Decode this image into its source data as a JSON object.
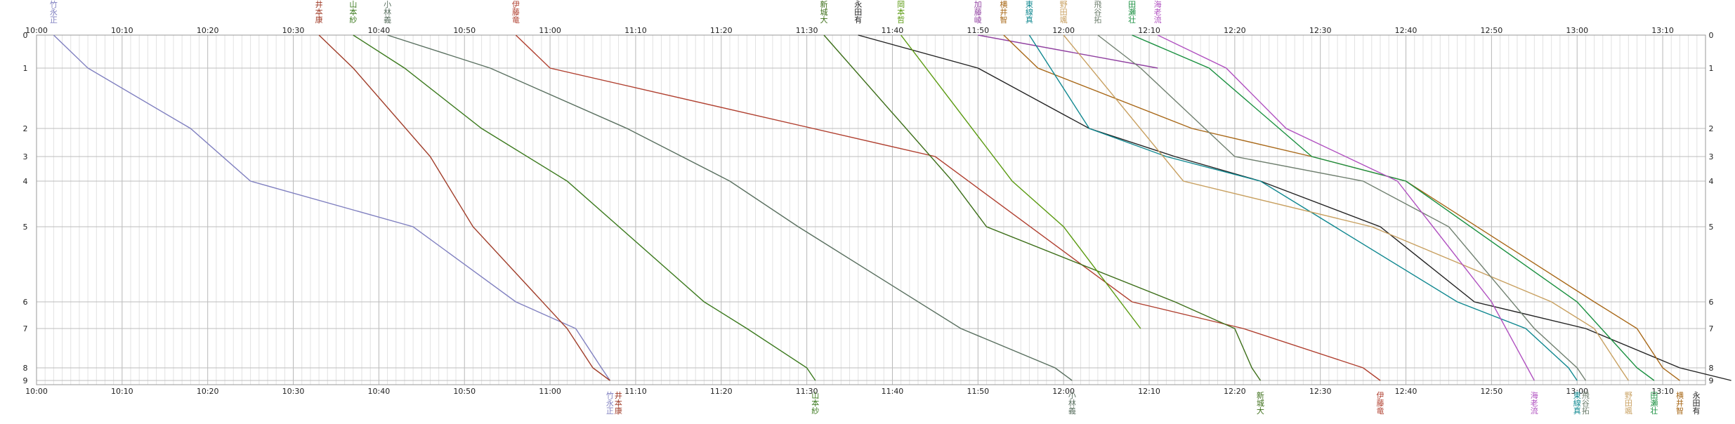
{
  "chart_data": {
    "type": "line",
    "x_axis": {
      "min": "10:00",
      "max": "13:15",
      "tick_labels": [
        "10:00",
        "10:10",
        "10:20",
        "10:30",
        "10:40",
        "10:50",
        "11:00",
        "11:10",
        "11:20",
        "11:30",
        "11:40",
        "11:50",
        "12:00",
        "12:10",
        "12:20",
        "12:30",
        "12:40",
        "12:50",
        "13:00",
        "13:10"
      ],
      "minor_grid_minutes": 1
    },
    "y_axis": {
      "tick_labels": [
        "0",
        "1",
        "2",
        "3",
        "4",
        "5",
        "6",
        "7",
        "8",
        "9"
      ],
      "inverted": true
    },
    "grid": true,
    "series": [
      {
        "name": "竹永正",
        "color": "#8080c0",
        "points": [
          [
            "10:02",
            "0"
          ],
          [
            "10:06",
            "1"
          ],
          [
            "10:18",
            "2"
          ],
          [
            "10:25",
            "4"
          ],
          [
            "10:44",
            "5"
          ],
          [
            "10:56",
            "6"
          ],
          [
            "11:03",
            "7"
          ],
          [
            "11:06",
            "8"
          ],
          [
            "11:07",
            "9"
          ]
        ]
      },
      {
        "name": "井本康",
        "color": "#a03c28",
        "points": [
          [
            "10:33",
            "0"
          ],
          [
            "10:37",
            "1"
          ],
          [
            "10:46",
            "3"
          ],
          [
            "10:51",
            "5"
          ],
          [
            "11:02",
            "7"
          ],
          [
            "11:05",
            "8"
          ],
          [
            "11:07",
            "9"
          ]
        ]
      },
      {
        "name": "山本紗",
        "color": "#3c7a1e",
        "points": [
          [
            "10:37",
            "0"
          ],
          [
            "10:43",
            "1"
          ],
          [
            "10:52",
            "2"
          ],
          [
            "11:02",
            "4"
          ],
          [
            "11:18",
            "6"
          ],
          [
            "11:23",
            "7"
          ],
          [
            "11:30",
            "8"
          ],
          [
            "11:31",
            "9"
          ]
        ]
      },
      {
        "name": "小林義",
        "color": "#5a7060",
        "points": [
          [
            "10:41",
            "0"
          ],
          [
            "10:53",
            "1"
          ],
          [
            "11:09",
            "2"
          ],
          [
            "11:21",
            "4"
          ],
          [
            "11:29",
            "5"
          ],
          [
            "11:48",
            "7"
          ],
          [
            "11:59",
            "8"
          ],
          [
            "12:01",
            "9"
          ]
        ]
      },
      {
        "name": "伊藤竜",
        "color": "#b04030",
        "points": [
          [
            "10:56",
            "0"
          ],
          [
            "11:00",
            "1"
          ],
          [
            "11:45",
            "3"
          ],
          [
            "12:08",
            "6"
          ],
          [
            "12:21",
            "7"
          ],
          [
            "12:35",
            "8"
          ],
          [
            "12:37",
            "9"
          ]
        ]
      },
      {
        "name": "新城大",
        "color": "#3c6e18",
        "points": [
          [
            "11:32",
            "0"
          ],
          [
            "11:47",
            "4"
          ],
          [
            "11:51",
            "5"
          ],
          [
            "12:13",
            "6"
          ],
          [
            "12:20",
            "7"
          ],
          [
            "12:22",
            "8"
          ],
          [
            "12:23",
            "9"
          ]
        ]
      },
      {
        "name": "永田有",
        "color": "#222222",
        "points": [
          [
            "11:36",
            "0"
          ],
          [
            "11:50",
            "1"
          ],
          [
            "12:03",
            "2"
          ],
          [
            "12:13",
            "3"
          ],
          [
            "12:23",
            "4"
          ],
          [
            "12:37",
            "5"
          ],
          [
            "12:48",
            "6"
          ],
          [
            "13:01",
            "7"
          ],
          [
            "13:12",
            "8"
          ],
          [
            "13:18",
            "9"
          ]
        ]
      },
      {
        "name": "岡本哲",
        "color": "#5a9a10",
        "points": [
          [
            "11:41",
            "0"
          ],
          [
            "11:54",
            "4"
          ],
          [
            "12:00",
            "5"
          ],
          [
            "12:09",
            "7"
          ]
        ]
      },
      {
        "name": "加藤崚",
        "color": "#9040a0",
        "points": [
          [
            "11:50",
            "0"
          ],
          [
            "12:11",
            "1"
          ]
        ]
      },
      {
        "name": "横井智",
        "color": "#a86818",
        "points": [
          [
            "11:53",
            "0"
          ],
          [
            "11:57",
            "1"
          ],
          [
            "12:15",
            "2"
          ],
          [
            "12:29",
            "3"
          ],
          [
            "12:40",
            "4"
          ],
          [
            "13:02",
            "6"
          ],
          [
            "13:07",
            "7"
          ],
          [
            "13:10",
            "8"
          ],
          [
            "13:12",
            "9"
          ]
        ]
      },
      {
        "name": "東線真",
        "color": "#108890",
        "points": [
          [
            "11:56",
            "0"
          ],
          [
            "12:03",
            "2"
          ],
          [
            "12:12",
            "3"
          ],
          [
            "12:23",
            "4"
          ],
          [
            "12:46",
            "6"
          ],
          [
            "12:54",
            "7"
          ],
          [
            "12:59",
            "8"
          ],
          [
            "13:00",
            "9"
          ]
        ]
      },
      {
        "name": "野田颯",
        "color": "#c8a060",
        "points": [
          [
            "12:00",
            "0"
          ],
          [
            "12:14",
            "4"
          ],
          [
            "12:36",
            "5"
          ],
          [
            "12:57",
            "6"
          ],
          [
            "13:02",
            "7"
          ],
          [
            "13:05",
            "8"
          ],
          [
            "13:06",
            "9"
          ]
        ]
      },
      {
        "name": "飛谷拓",
        "color": "#708070",
        "points": [
          [
            "12:04",
            "0"
          ],
          [
            "12:09",
            "1"
          ],
          [
            "12:20",
            "3"
          ],
          [
            "12:35",
            "4"
          ],
          [
            "12:45",
            "5"
          ],
          [
            "12:55",
            "7"
          ],
          [
            "13:00",
            "8"
          ],
          [
            "13:01",
            "9"
          ]
        ]
      },
      {
        "name": "田瀬壮",
        "color": "#1a9040",
        "points": [
          [
            "12:08",
            "0"
          ],
          [
            "12:17",
            "1"
          ],
          [
            "12:29",
            "3"
          ],
          [
            "12:40",
            "4"
          ],
          [
            "13:00",
            "6"
          ],
          [
            "13:07",
            "8"
          ],
          [
            "13:09",
            "9"
          ]
        ]
      },
      {
        "name": "海老流",
        "color": "#b050c0",
        "points": [
          [
            "12:11",
            "0"
          ],
          [
            "12:19",
            "1"
          ],
          [
            "12:26",
            "2"
          ],
          [
            "12:39",
            "4"
          ],
          [
            "12:50",
            "6"
          ],
          [
            "12:55",
            "9"
          ]
        ]
      }
    ],
    "top_labels": [
      "竹永正",
      "井本康",
      "山本紗",
      "小林義",
      "伊藤竜",
      "新城大",
      "永田有",
      "岡本哲",
      "加藤崚",
      "横井智",
      "東線真",
      "野田颯",
      "飛谷拓",
      "田瀬壮",
      "海老流"
    ],
    "bottom_labels": [
      "竹永正",
      "井本康",
      "山本紗",
      "小林義",
      "新城大",
      "伊藤竜",
      "海老流",
      "東線真",
      "飛谷拓",
      "野田颯",
      "田瀬壮",
      "横井智",
      "永田有"
    ]
  }
}
